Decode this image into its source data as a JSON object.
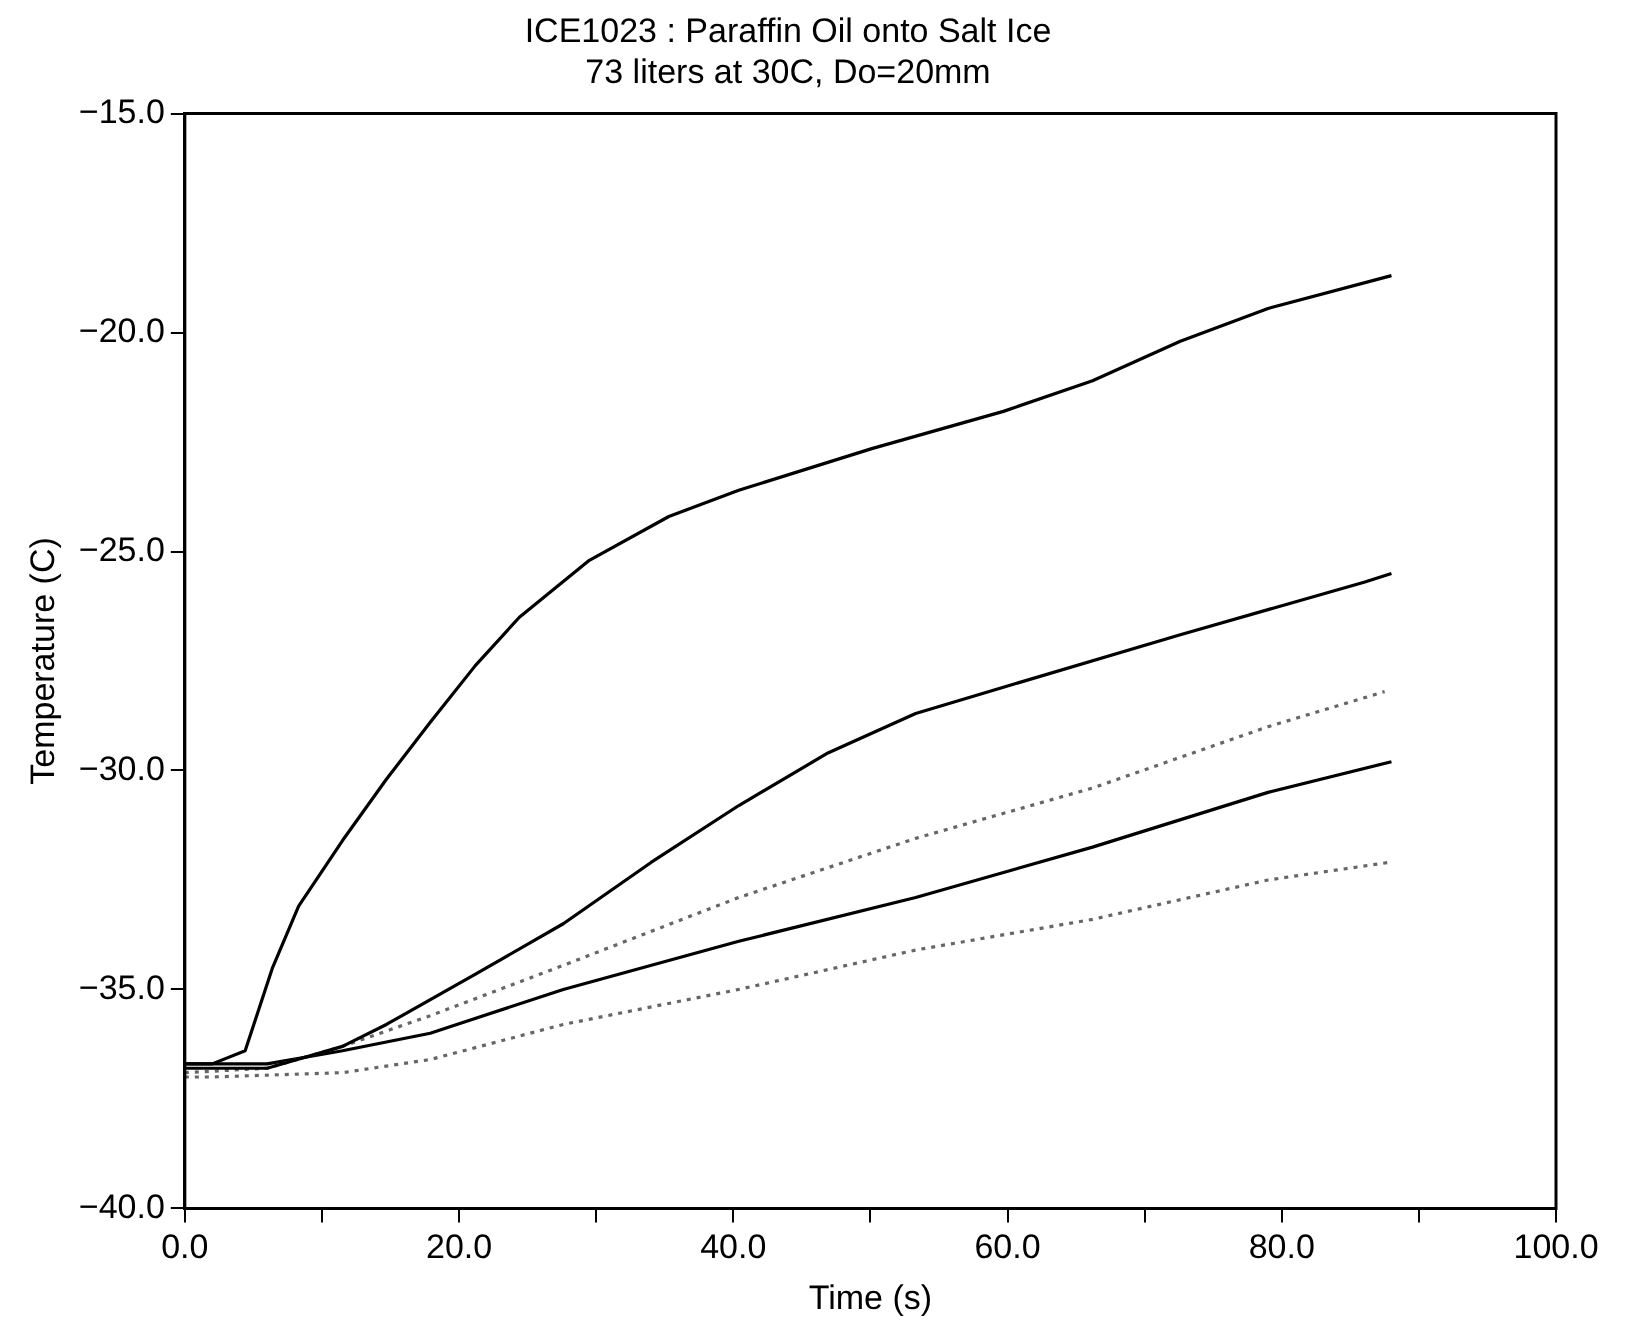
{
  "chart_data": {
    "type": "line",
    "title": "ICE1023 : Paraffin Oil onto Salt Ice",
    "subtitle": "73 liters at 30C, Do=20mm",
    "xlabel": "Time (s)",
    "ylabel": "Temperature (C)",
    "xlim": [
      0,
      100
    ],
    "xticks": [
      {
        "value": 0,
        "label": "0.0"
      },
      {
        "value": 10,
        "label": null
      },
      {
        "value": 20,
        "label": "20.0"
      },
      {
        "value": 30,
        "label": null
      },
      {
        "value": 40,
        "label": "40.0"
      },
      {
        "value": 50,
        "label": null
      },
      {
        "value": 60,
        "label": "60.0"
      },
      {
        "value": 70,
        "label": null
      },
      {
        "value": 80,
        "label": "80.0"
      },
      {
        "value": 90,
        "label": null
      },
      {
        "value": 100,
        "label": "100.0"
      }
    ],
    "ylim": [
      -40,
      -15
    ],
    "yticks": [
      {
        "value": -40,
        "label": "−40.0"
      },
      {
        "value": -35,
        "label": "−35.0"
      },
      {
        "value": -30,
        "label": "−30.0"
      },
      {
        "value": -25,
        "label": "−25.0"
      },
      {
        "value": -20,
        "label": "−20.0"
      },
      {
        "value": -15,
        "label": "−15.0"
      }
    ],
    "grid": false,
    "legend": false,
    "marker": "none",
    "series": [
      {
        "color": "#000000",
        "line_style": "solid",
        "x": [
          0,
          2,
          4.4,
          6.4,
          8.3,
          11.5,
          14.7,
          17.9,
          21.2,
          24.4,
          29.5,
          35.3,
          40.4,
          50.1,
          59.7,
          66.2,
          72.6,
          79,
          88
        ],
        "values": [
          -36.7,
          -36.7,
          -36.4,
          -34.5,
          -33.1,
          -31.6,
          -30.2,
          -28.9,
          -27.6,
          -26.5,
          -25.2,
          -24.2,
          -23.6,
          -22.65,
          -21.8,
          -21.1,
          -20.2,
          -19.45,
          -18.7
        ]
      },
      {
        "color": "#000000",
        "line_style": "solid",
        "x": [
          0,
          6,
          11.5,
          14.7,
          21.2,
          27.6,
          34,
          40.4,
          46.9,
          53.3,
          59.7,
          72.6,
          86,
          88
        ],
        "values": [
          -36.8,
          -36.8,
          -36.3,
          -35.8,
          -34.65,
          -33.5,
          -32.1,
          -30.8,
          -29.6,
          -28.7,
          -28.1,
          -26.9,
          -25.7,
          -25.5
        ]
      },
      {
        "color": "#666666",
        "line_style": "dotted",
        "x": [
          0,
          6,
          11.5,
          17.9,
          27.6,
          40.4,
          53.3,
          66.2,
          79,
          87.5
        ],
        "values": [
          -36.9,
          -36.8,
          -36.3,
          -35.6,
          -34.45,
          -32.9,
          -31.55,
          -30.4,
          -29.0,
          -28.2
        ]
      },
      {
        "color": "#000000",
        "line_style": "solid",
        "x": [
          0,
          6,
          11.5,
          17.9,
          27.6,
          40.4,
          53.3,
          66.2,
          79,
          88
        ],
        "values": [
          -36.7,
          -36.7,
          -36.4,
          -36.0,
          -35.0,
          -33.9,
          -32.9,
          -31.75,
          -30.5,
          -29.8
        ]
      },
      {
        "color": "#666666",
        "line_style": "dotted",
        "x": [
          0,
          1.9,
          11.5,
          17.9,
          27.6,
          40.4,
          53.3,
          66.2,
          79,
          87.8
        ],
        "values": [
          -37.0,
          -37.0,
          -36.9,
          -36.6,
          -35.8,
          -35.0,
          -34.1,
          -33.4,
          -32.5,
          -32.1
        ]
      }
    ]
  }
}
